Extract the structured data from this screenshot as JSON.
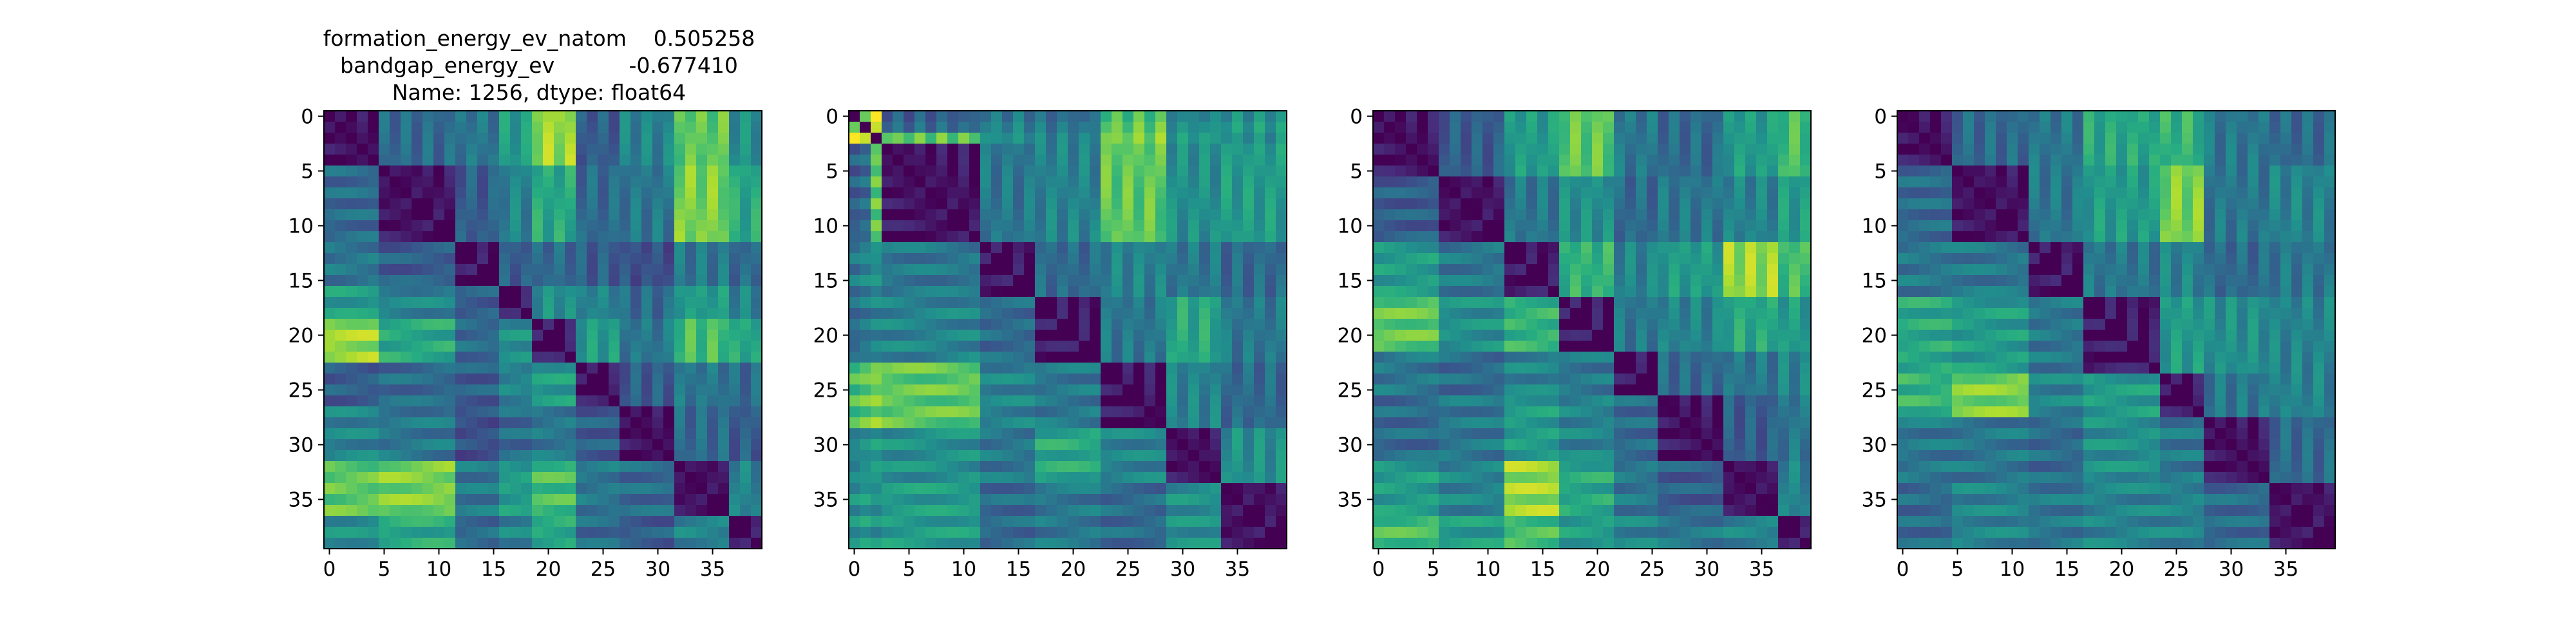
{
  "figure": {
    "title_lines": [
      "formation_energy_ev_natom    0.505258",
      "bandgap_energy_ev           -0.677410",
      "Name: 1256, dtype: float64"
    ]
  },
  "chart_data": [
    {
      "type": "heatmap",
      "title": "formation_energy_ev_natom    0.505258\nbandgap_energy_ev           -0.677410\nName: 1256, dtype: float64",
      "size": 40,
      "xticks": [
        0,
        5,
        10,
        15,
        20,
        25,
        30,
        35
      ],
      "yticks": [
        0,
        5,
        10,
        15,
        20,
        25,
        30,
        35
      ],
      "colormap": "viridis",
      "diagonal": 0,
      "groups": [
        [
          0,
          4
        ],
        [
          5,
          11
        ],
        [
          12,
          15
        ],
        [
          16,
          18
        ],
        [
          19,
          22
        ],
        [
          23,
          26
        ],
        [
          27,
          31
        ],
        [
          32,
          36
        ],
        [
          37,
          39
        ]
      ],
      "group_values": [
        [
          0.05,
          0.35,
          0.4,
          0.55,
          0.85,
          0.3,
          0.45,
          0.75,
          0.5
        ],
        [
          0.35,
          0.05,
          0.3,
          0.45,
          0.6,
          0.35,
          0.4,
          0.8,
          0.6
        ],
        [
          0.4,
          0.3,
          0.05,
          0.3,
          0.35,
          0.3,
          0.25,
          0.4,
          0.35
        ],
        [
          0.55,
          0.45,
          0.3,
          0.05,
          0.5,
          0.45,
          0.35,
          0.55,
          0.45
        ],
        [
          0.85,
          0.6,
          0.35,
          0.5,
          0.05,
          0.55,
          0.4,
          0.7,
          0.6
        ],
        [
          0.3,
          0.35,
          0.3,
          0.45,
          0.55,
          0.05,
          0.3,
          0.4,
          0.35
        ],
        [
          0.45,
          0.4,
          0.25,
          0.35,
          0.4,
          0.3,
          0.05,
          0.35,
          0.3
        ],
        [
          0.75,
          0.8,
          0.4,
          0.55,
          0.7,
          0.4,
          0.35,
          0.05,
          0.45
        ],
        [
          0.5,
          0.6,
          0.35,
          0.45,
          0.6,
          0.35,
          0.3,
          0.45,
          0.05
        ]
      ]
    },
    {
      "type": "heatmap",
      "size": 40,
      "xticks": [
        0,
        5,
        10,
        15,
        20,
        25,
        30,
        35
      ],
      "yticks": [
        0,
        5,
        10,
        15,
        20,
        25,
        30,
        35
      ],
      "colormap": "viridis",
      "diagonal": 0,
      "groups": [
        [
          0,
          0
        ],
        [
          1,
          1
        ],
        [
          2,
          2
        ],
        [
          3,
          11
        ],
        [
          12,
          16
        ],
        [
          17,
          22
        ],
        [
          23,
          28
        ],
        [
          29,
          33
        ],
        [
          34,
          39
        ]
      ],
      "group_values": [
        [
          0.05,
          0.8,
          0.95,
          0.3,
          0.4,
          0.35,
          0.7,
          0.45,
          0.5
        ],
        [
          0.8,
          0.05,
          0.9,
          0.35,
          0.45,
          0.4,
          0.75,
          0.5,
          0.55
        ],
        [
          0.95,
          0.9,
          0.05,
          0.75,
          0.5,
          0.45,
          0.8,
          0.55,
          0.5
        ],
        [
          0.3,
          0.35,
          0.75,
          0.05,
          0.4,
          0.45,
          0.75,
          0.5,
          0.55
        ],
        [
          0.4,
          0.45,
          0.5,
          0.4,
          0.05,
          0.35,
          0.45,
          0.4,
          0.35
        ],
        [
          0.35,
          0.4,
          0.45,
          0.45,
          0.35,
          0.05,
          0.4,
          0.6,
          0.4
        ],
        [
          0.7,
          0.75,
          0.8,
          0.75,
          0.45,
          0.4,
          0.05,
          0.45,
          0.35
        ],
        [
          0.45,
          0.5,
          0.55,
          0.5,
          0.4,
          0.6,
          0.45,
          0.05,
          0.5
        ],
        [
          0.5,
          0.55,
          0.5,
          0.55,
          0.35,
          0.4,
          0.35,
          0.5,
          0.05
        ]
      ]
    },
    {
      "type": "heatmap",
      "size": 40,
      "xticks": [
        0,
        5,
        10,
        15,
        20,
        25,
        30,
        35
      ],
      "yticks": [
        0,
        5,
        10,
        15,
        20,
        25,
        30,
        35
      ],
      "colormap": "viridis",
      "diagonal": 0,
      "groups": [
        [
          0,
          5
        ],
        [
          6,
          11
        ],
        [
          12,
          16
        ],
        [
          17,
          21
        ],
        [
          22,
          25
        ],
        [
          26,
          31
        ],
        [
          32,
          36
        ],
        [
          37,
          39
        ]
      ],
      "group_values": [
        [
          0.05,
          0.3,
          0.55,
          0.75,
          0.4,
          0.35,
          0.55,
          0.7
        ],
        [
          0.3,
          0.05,
          0.4,
          0.5,
          0.35,
          0.4,
          0.45,
          0.55
        ],
        [
          0.55,
          0.4,
          0.05,
          0.65,
          0.45,
          0.55,
          0.85,
          0.7
        ],
        [
          0.75,
          0.5,
          0.65,
          0.05,
          0.4,
          0.45,
          0.6,
          0.55
        ],
        [
          0.4,
          0.35,
          0.45,
          0.4,
          0.05,
          0.35,
          0.4,
          0.45
        ],
        [
          0.35,
          0.4,
          0.55,
          0.45,
          0.35,
          0.05,
          0.3,
          0.4
        ],
        [
          0.55,
          0.45,
          0.85,
          0.6,
          0.4,
          0.3,
          0.05,
          0.45
        ],
        [
          0.7,
          0.55,
          0.7,
          0.55,
          0.45,
          0.4,
          0.45,
          0.05
        ]
      ]
    },
    {
      "type": "heatmap",
      "size": 40,
      "xticks": [
        0,
        5,
        10,
        15,
        20,
        25,
        30,
        35
      ],
      "yticks": [
        0,
        5,
        10,
        15,
        20,
        25,
        30,
        35
      ],
      "colormap": "viridis",
      "diagonal": 0,
      "groups": [
        [
          0,
          4
        ],
        [
          5,
          11
        ],
        [
          12,
          16
        ],
        [
          17,
          23
        ],
        [
          24,
          27
        ],
        [
          28,
          33
        ],
        [
          34,
          39
        ]
      ],
      "group_values": [
        [
          0.05,
          0.35,
          0.4,
          0.6,
          0.65,
          0.4,
          0.35
        ],
        [
          0.35,
          0.05,
          0.4,
          0.55,
          0.8,
          0.4,
          0.45
        ],
        [
          0.4,
          0.4,
          0.05,
          0.4,
          0.45,
          0.35,
          0.4
        ],
        [
          0.6,
          0.55,
          0.4,
          0.05,
          0.55,
          0.5,
          0.45
        ],
        [
          0.65,
          0.8,
          0.45,
          0.55,
          0.05,
          0.4,
          0.45
        ],
        [
          0.4,
          0.4,
          0.35,
          0.5,
          0.4,
          0.05,
          0.35
        ],
        [
          0.35,
          0.45,
          0.4,
          0.45,
          0.45,
          0.35,
          0.05
        ]
      ]
    }
  ]
}
